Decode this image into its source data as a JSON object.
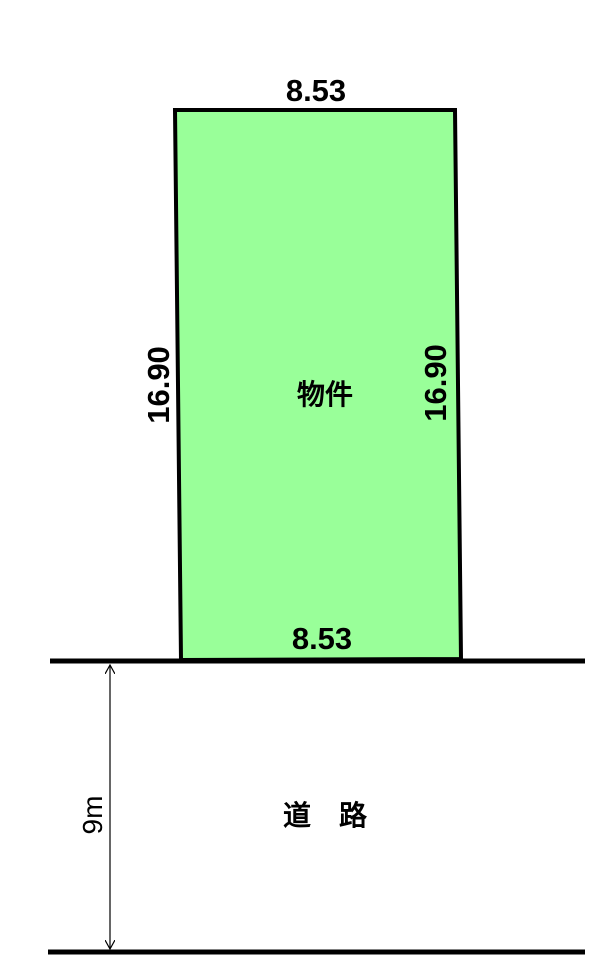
{
  "plot": {
    "label": "物件",
    "fill_color": "#99ff99",
    "top_width": "8.53",
    "bottom_width": "8.53",
    "left_depth": "16.90",
    "right_depth": "16.90"
  },
  "road": {
    "label": "道　路",
    "width": "9m"
  }
}
